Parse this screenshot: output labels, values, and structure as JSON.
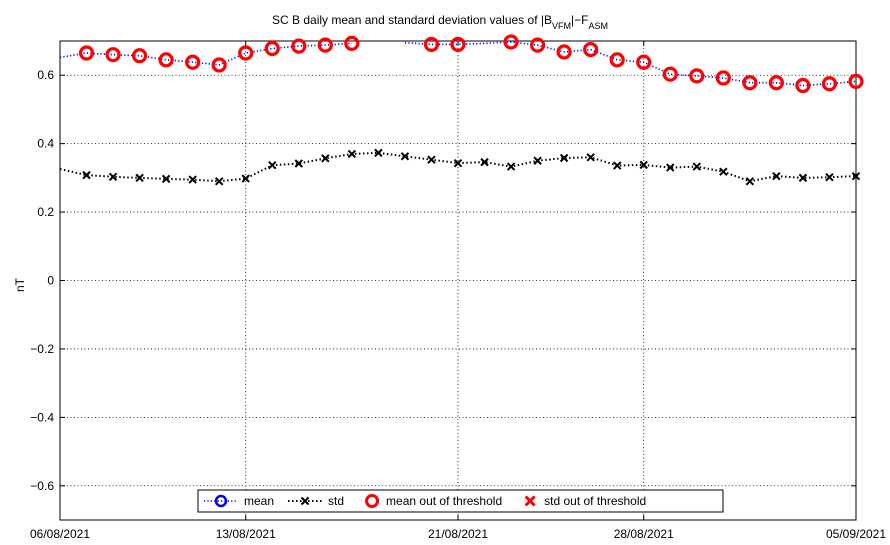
{
  "chart_data": {
    "type": "scatter",
    "title": {
      "prefix": "SC B daily mean and standard deviation values of |B",
      "sub1": "VFM",
      "mid": "|−F",
      "sub2": "ASM"
    },
    "xlabel": "",
    "ylabel": "nT",
    "ylim": [
      -0.7,
      0.7
    ],
    "yticks": [
      -0.6,
      -0.4,
      -0.2,
      0,
      0.2,
      0.4,
      0.6
    ],
    "ytick_labels": [
      "−0.6",
      "−0.4",
      "−0.2",
      "0",
      "0.2",
      "0.4",
      "0.6"
    ],
    "xlim": [
      "2021-08-06",
      "2021-09-05"
    ],
    "xticks": [
      "2021-08-06",
      "2021-08-13",
      "2021-08-21",
      "2021-08-28",
      "2021-09-05"
    ],
    "xtick_labels": [
      "06/08/2021",
      "13/08/2021",
      "21/08/2021",
      "28/08/2021",
      "05/09/2021"
    ],
    "grid": true,
    "legend_position": "bottom-center",
    "legend": [
      {
        "label": "mean",
        "style": "mean"
      },
      {
        "label": "std",
        "style": "std"
      },
      {
        "label": "mean out of threshold",
        "style": "mean_out"
      },
      {
        "label": "std out of threshold",
        "style": "std_out"
      }
    ],
    "series": [
      {
        "name": "mean",
        "color": "#0000ff",
        "line": [
          [
            "2021-08-06",
            0.652
          ],
          [
            "2021-08-07",
            0.665
          ],
          [
            "2021-08-08",
            0.66
          ],
          [
            "2021-08-09",
            0.657
          ],
          [
            "2021-08-10",
            0.645
          ],
          [
            "2021-08-11",
            0.638
          ],
          [
            "2021-08-12",
            0.63
          ],
          [
            "2021-08-13",
            0.665
          ],
          [
            "2021-08-14",
            0.678
          ],
          [
            "2021-08-15",
            0.685
          ],
          [
            "2021-08-16",
            0.688
          ],
          [
            "2021-08-17",
            0.693
          ],
          null,
          [
            "2021-08-19",
            0.695
          ],
          [
            "2021-08-20",
            0.69
          ],
          [
            "2021-08-21",
            0.69
          ],
          [
            "2021-08-22",
            0.693
          ],
          [
            "2021-08-23",
            0.697
          ],
          [
            "2021-08-24",
            0.688
          ],
          [
            "2021-08-25",
            0.668
          ],
          [
            "2021-08-26",
            0.675
          ],
          [
            "2021-08-27",
            0.645
          ],
          [
            "2021-08-28",
            0.638
          ],
          [
            "2021-08-29",
            0.603
          ],
          [
            "2021-08-30",
            0.598
          ],
          [
            "2021-08-31",
            0.592
          ],
          [
            "2021-09-01",
            0.578
          ],
          [
            "2021-09-02",
            0.578
          ],
          [
            "2021-09-03",
            0.57
          ],
          [
            "2021-09-04",
            0.575
          ],
          [
            "2021-09-05",
            0.582
          ]
        ]
      },
      {
        "name": "std",
        "color": "#000000",
        "line": [
          [
            "2021-08-06",
            0.326
          ],
          [
            "2021-08-07",
            0.308
          ],
          [
            "2021-08-08",
            0.303
          ],
          [
            "2021-08-09",
            0.3
          ],
          [
            "2021-08-10",
            0.297
          ],
          [
            "2021-08-11",
            0.295
          ],
          [
            "2021-08-12",
            0.29
          ],
          [
            "2021-08-13",
            0.298
          ],
          [
            "2021-08-14",
            0.337
          ],
          [
            "2021-08-15",
            0.342
          ],
          [
            "2021-08-16",
            0.357
          ],
          [
            "2021-08-17",
            0.37
          ],
          [
            "2021-08-18",
            0.373
          ],
          [
            "2021-08-19",
            0.363
          ],
          [
            "2021-08-20",
            0.353
          ],
          [
            "2021-08-21",
            0.343
          ],
          [
            "2021-08-22",
            0.346
          ],
          [
            "2021-08-23",
            0.333
          ],
          [
            "2021-08-24",
            0.35
          ],
          [
            "2021-08-25",
            0.358
          ],
          [
            "2021-08-26",
            0.36
          ],
          [
            "2021-08-27",
            0.336
          ],
          [
            "2021-08-28",
            0.338
          ],
          [
            "2021-08-29",
            0.33
          ],
          [
            "2021-08-30",
            0.333
          ],
          [
            "2021-08-31",
            0.318
          ],
          [
            "2021-09-01",
            0.29
          ],
          [
            "2021-09-02",
            0.305
          ],
          [
            "2021-09-03",
            0.3
          ],
          [
            "2021-09-04",
            0.302
          ],
          [
            "2021-09-05",
            0.305
          ]
        ]
      },
      {
        "name": "mean out of threshold",
        "color": "#ff0000",
        "points": [
          [
            "2021-08-07",
            0.665
          ],
          [
            "2021-08-08",
            0.66
          ],
          [
            "2021-08-09",
            0.657
          ],
          [
            "2021-08-10",
            0.645
          ],
          [
            "2021-08-11",
            0.638
          ],
          [
            "2021-08-12",
            0.63
          ],
          [
            "2021-08-13",
            0.665
          ],
          [
            "2021-08-14",
            0.678
          ],
          [
            "2021-08-15",
            0.685
          ],
          [
            "2021-08-16",
            0.688
          ],
          [
            "2021-08-17",
            0.693
          ],
          [
            "2021-08-20",
            0.69
          ],
          [
            "2021-08-21",
            0.69
          ],
          [
            "2021-08-23",
            0.697
          ],
          [
            "2021-08-24",
            0.688
          ],
          [
            "2021-08-25",
            0.668
          ],
          [
            "2021-08-26",
            0.675
          ],
          [
            "2021-08-27",
            0.645
          ],
          [
            "2021-08-28",
            0.638
          ],
          [
            "2021-08-29",
            0.603
          ],
          [
            "2021-08-30",
            0.598
          ],
          [
            "2021-08-31",
            0.592
          ],
          [
            "2021-09-01",
            0.578
          ],
          [
            "2021-09-02",
            0.578
          ],
          [
            "2021-09-03",
            0.57
          ],
          [
            "2021-09-04",
            0.575
          ],
          [
            "2021-09-05",
            0.582
          ]
        ]
      },
      {
        "name": "std out of threshold",
        "color": "#ff0000",
        "points": []
      }
    ]
  }
}
